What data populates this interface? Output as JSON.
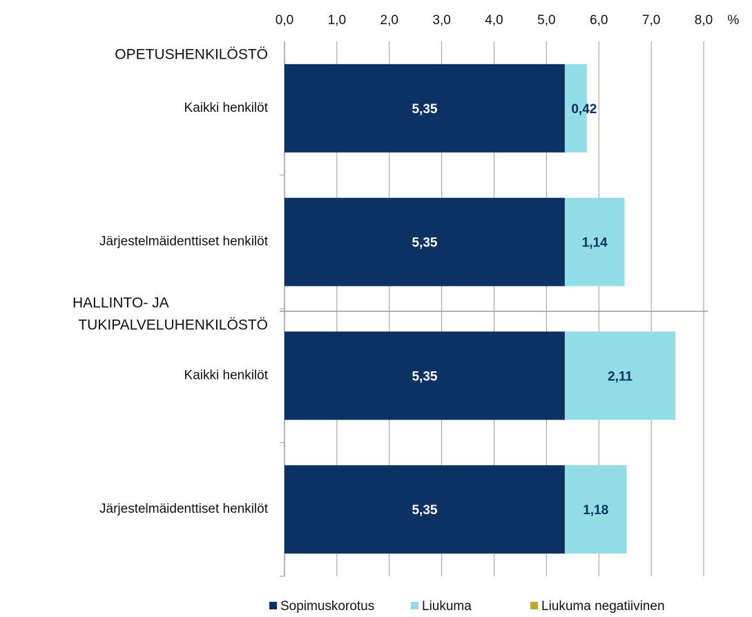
{
  "chart_data": {
    "type": "stacked_barh",
    "groups": [
      [
        "OPETUSHENKILÖSTÖ"
      ],
      [
        "HALLINTO- JA",
        "TUKIPALVELUHENKILÖSTÖ"
      ]
    ],
    "categories": [
      "Kaikki henkilöt",
      "Järjestelmäidenttiset henkilöt",
      "Kaikki henkilöt",
      "Järjestelmäidenttiset henkilöt"
    ],
    "series": [
      {
        "name": "Sopimuskorotus",
        "color": "#0b3262",
        "label_color": "#ffffff",
        "values": [
          5.35,
          5.35,
          5.35,
          5.35
        ],
        "value_labels": [
          "5,35",
          "5,35",
          "5,35",
          "5,35"
        ]
      },
      {
        "name": "Liukuma",
        "color": "#93dde6",
        "label_color": "#0b3262",
        "values": [
          0.42,
          1.14,
          2.11,
          1.18
        ],
        "value_labels": [
          "0,42",
          "1,14",
          "2,11",
          "1,18"
        ]
      },
      {
        "name": "Liukuma negatiivinen",
        "color": "#b6aa34",
        "values": [
          null,
          null,
          null,
          null
        ]
      }
    ],
    "xlabel": "%",
    "xlim": [
      0,
      8
    ],
    "xticks": [
      {
        "value": 0,
        "label": "0,0"
      },
      {
        "value": 1,
        "label": "1,0"
      },
      {
        "value": 2,
        "label": "2,0"
      },
      {
        "value": 3,
        "label": "3,0"
      },
      {
        "value": 4,
        "label": "4,0"
      },
      {
        "value": 5,
        "label": "5,0"
      },
      {
        "value": 6,
        "label": "6,0"
      },
      {
        "value": 7,
        "label": "7,0"
      },
      {
        "value": 8,
        "label": "8,0"
      }
    ],
    "grid": true,
    "legend": "bottom"
  }
}
